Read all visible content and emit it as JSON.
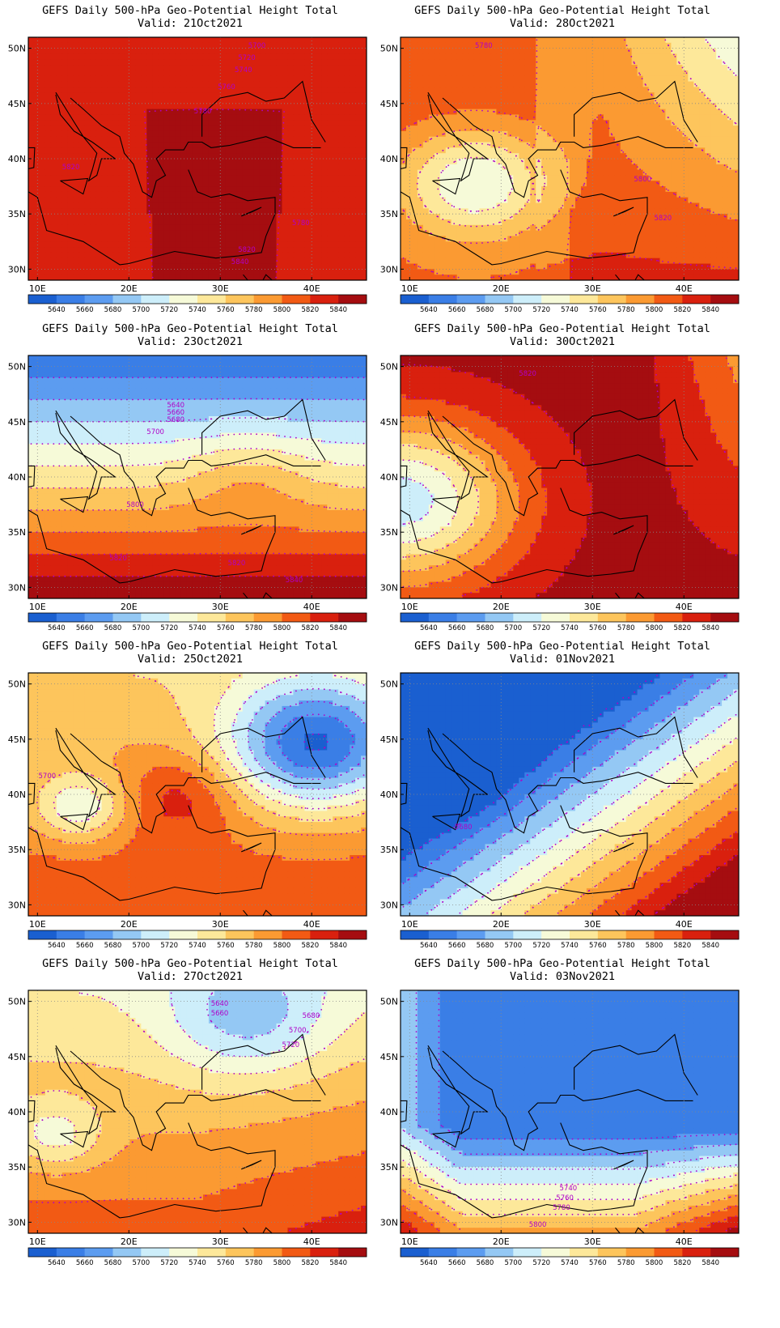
{
  "map_data": {
    "lon_ticks": [
      "10E",
      "20E",
      "30E",
      "40E"
    ],
    "lat_ticks": [
      "50N",
      "45N",
      "40N",
      "35N",
      "30N"
    ],
    "colorbar": {
      "labels": [
        "5640",
        "5660",
        "5680",
        "5700",
        "5720",
        "5740",
        "5760",
        "5780",
        "5800",
        "5820",
        "5840"
      ],
      "colors": [
        "#1a5fd0",
        "#3a7ee6",
        "#5c9cf0",
        "#94c8f4",
        "#cdeefa",
        "#f6fad8",
        "#fde89a",
        "#fdc55c",
        "#fb9a32",
        "#f25a14",
        "#d9200e",
        "#a50d10"
      ]
    },
    "contour_line_color": "#b000c8",
    "panels": [
      {
        "title": "GEFS Daily 500-hPa Geo-Potential Height Total",
        "valid": "Valid: 21Oct2021",
        "labels": [
          "5700",
          "5720",
          "5740",
          "5760",
          "5780",
          "5820",
          "5780",
          "5820",
          "5840"
        ]
      },
      {
        "title": "GEFS Daily 500-hPa Geo-Potential Height Total",
        "valid": "Valid: 28Oct2021",
        "labels": [
          "5780",
          "5800",
          "5820"
        ]
      },
      {
        "title": "GEFS Daily 500-hPa Geo-Potential Height Total",
        "valid": "Valid: 23Oct2021",
        "labels": [
          "5640",
          "5660",
          "5680",
          "5700",
          "5800",
          "5820",
          "5820",
          "5840"
        ]
      },
      {
        "title": "GEFS Daily 500-hPa Geo-Potential Height Total",
        "valid": "Valid: 30Oct2021",
        "labels": [
          "5820"
        ]
      },
      {
        "title": "GEFS Daily 500-hPa Geo-Potential Height Total",
        "valid": "Valid: 25Oct2021",
        "labels": [
          "5700"
        ]
      },
      {
        "title": "GEFS Daily 500-hPa Geo-Potential Height Total",
        "valid": "Valid: 01Nov2021",
        "labels": [
          "5680"
        ]
      },
      {
        "title": "GEFS Daily 500-hPa Geo-Potential Height Total",
        "valid": "Valid: 27Oct2021",
        "labels": [
          "5640",
          "5660",
          "5680",
          "5700",
          "5720"
        ]
      },
      {
        "title": "GEFS Daily 500-hPa Geo-Potential Height Total",
        "valid": "Valid: 03Nov2021",
        "labels": [
          "5740",
          "5760",
          "5780",
          "5800"
        ]
      }
    ]
  }
}
